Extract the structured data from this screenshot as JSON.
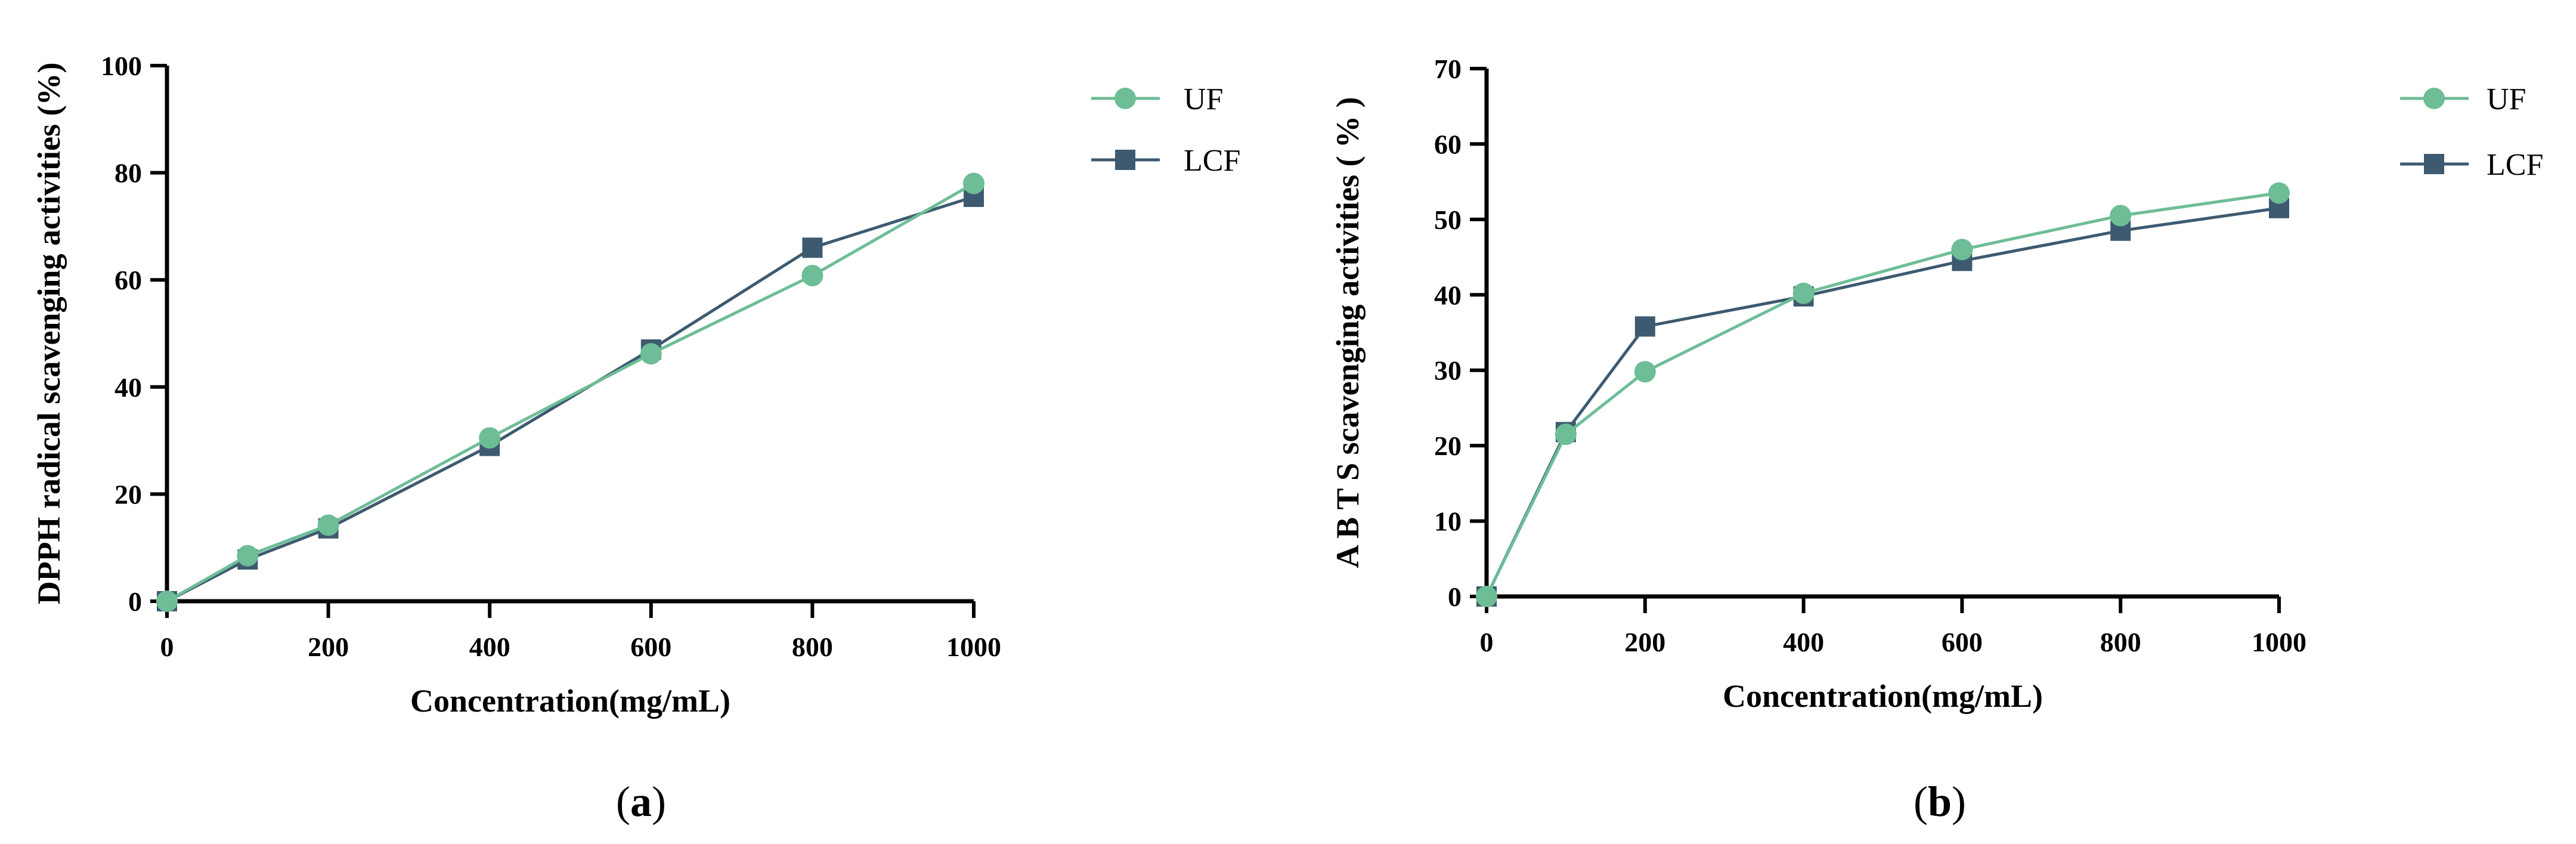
{
  "figure": {
    "colors": {
      "UF": "#6dbd96",
      "LCF": "#3d5a70",
      "axis": "#000000"
    }
  },
  "chart_data": [
    {
      "id": "a",
      "panel_label": "a",
      "type": "line",
      "title": "",
      "xlabel": "Concentration(mg/mL)",
      "ylabel": "DPPH radical scavenging activities (%)",
      "xlim": [
        0,
        1000
      ],
      "ylim": [
        0,
        100
      ],
      "xticks": [
        0,
        200,
        400,
        600,
        800,
        1000
      ],
      "yticks": [
        0,
        20,
        40,
        60,
        80,
        100
      ],
      "legend_position": "top-right",
      "series": [
        {
          "name": "UF",
          "marker": "circle",
          "x": [
            0,
            100,
            200,
            400,
            600,
            800,
            1000
          ],
          "y": [
            0,
            8.5,
            14.2,
            30.5,
            46.2,
            60.8,
            78.0
          ]
        },
        {
          "name": "LCF",
          "marker": "square",
          "x": [
            0,
            100,
            200,
            400,
            600,
            800,
            1000
          ],
          "y": [
            0,
            7.8,
            13.6,
            29.0,
            47.0,
            66.0,
            75.5
          ]
        }
      ]
    },
    {
      "id": "b",
      "panel_label": "b",
      "type": "line",
      "title": "",
      "xlabel": "Concentration(mg/mL)",
      "ylabel": "A B T S  scavenging activities ( % )",
      "xlim": [
        0,
        1000
      ],
      "ylim": [
        0,
        70
      ],
      "xticks": [
        0,
        200,
        400,
        600,
        800,
        1000
      ],
      "yticks": [
        0,
        10,
        20,
        30,
        40,
        50,
        60,
        70
      ],
      "legend_position": "top-right",
      "series": [
        {
          "name": "UF",
          "marker": "circle",
          "x": [
            0,
            100,
            200,
            400,
            600,
            800,
            1000
          ],
          "y": [
            0,
            21.5,
            29.8,
            40.2,
            46.0,
            50.5,
            53.5
          ]
        },
        {
          "name": "LCF",
          "marker": "square",
          "x": [
            0,
            100,
            200,
            400,
            600,
            800,
            1000
          ],
          "y": [
            0,
            21.8,
            35.8,
            39.8,
            44.5,
            48.5,
            51.5
          ]
        }
      ]
    }
  ]
}
